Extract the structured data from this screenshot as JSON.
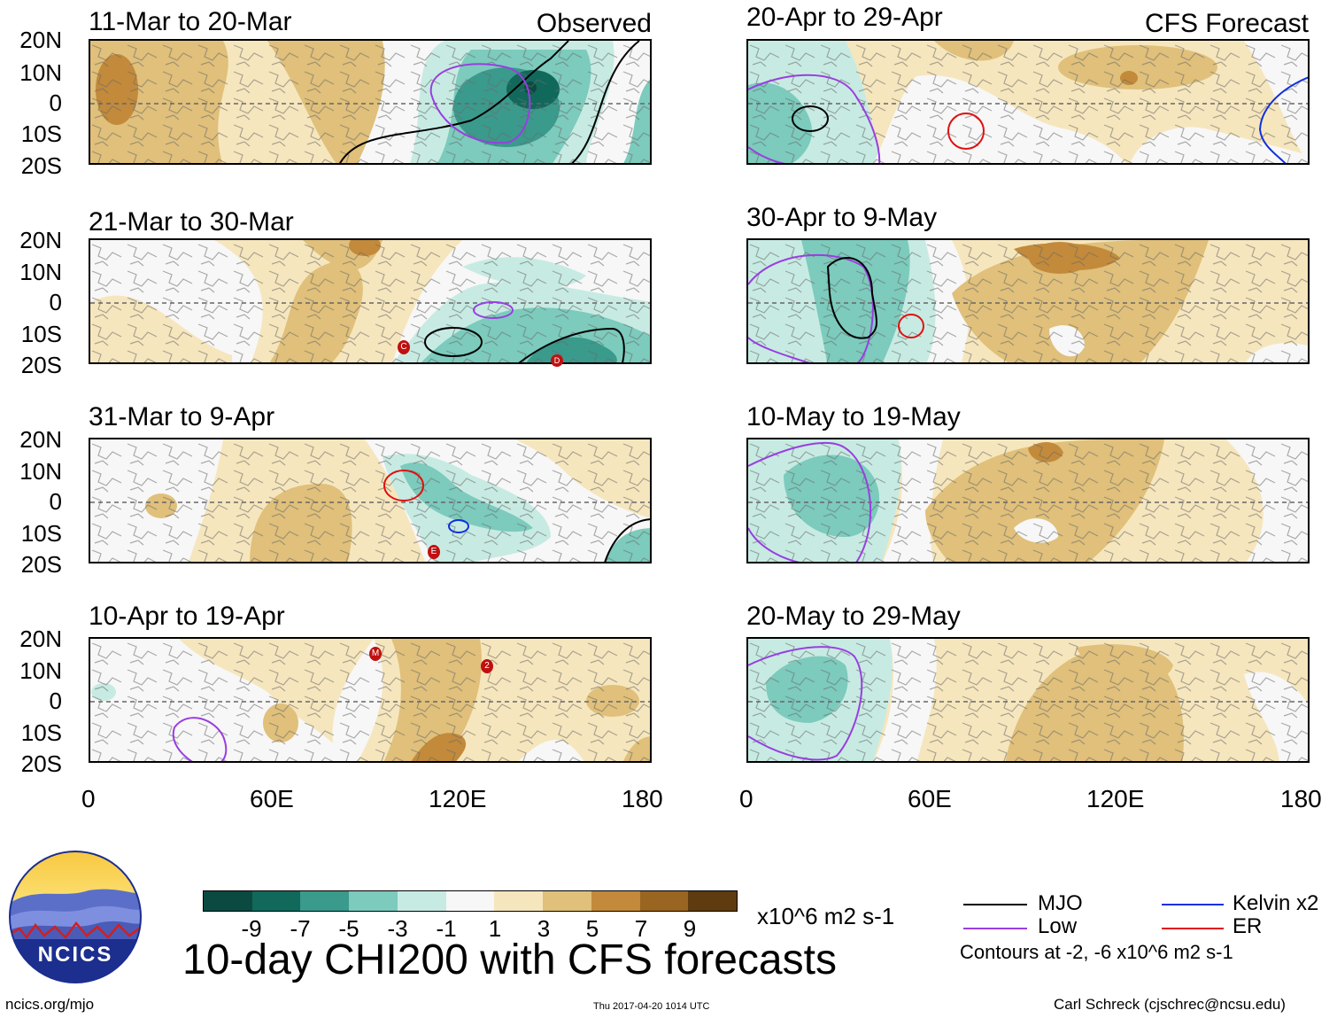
{
  "title": "10-day CHI200 with CFS forecasts",
  "left_header": "Observed",
  "right_header": "CFS Forecast",
  "lat_labels": [
    "20N",
    "10N",
    "0",
    "10S",
    "20S"
  ],
  "lon_labels": [
    "0",
    "60E",
    "120E",
    "180"
  ],
  "panels": [
    {
      "period": "11-Mar to 20-Mar"
    },
    {
      "period": "21-Mar to 30-Mar"
    },
    {
      "period": "31-Mar to 9-Apr"
    },
    {
      "period": "10-Apr to 19-Apr"
    },
    {
      "period": "20-Apr to 29-Apr"
    },
    {
      "period": "30-Apr to 9-May"
    },
    {
      "period": "10-May to 19-May"
    },
    {
      "period": "20-May to 29-May"
    }
  ],
  "colorbar": {
    "ticks": [
      "-9",
      "-7",
      "-5",
      "-3",
      "-1",
      "1",
      "3",
      "5",
      "7",
      "9"
    ],
    "colors": [
      "#0b4a40",
      "#11695c",
      "#3a9a8c",
      "#7ccbbd",
      "#c7ebe3",
      "#f7f7f7",
      "#f6e6bd",
      "#e0c07a",
      "#c28a3a",
      "#9a6520",
      "#5e3c10"
    ],
    "units": "x10^6 m2 s-1"
  },
  "legend": {
    "items": [
      {
        "label": "MJO",
        "color": "#000000"
      },
      {
        "label": "Kelvin x2",
        "color": "#1030e0"
      },
      {
        "label": "Low",
        "color": "#9a3ee0"
      },
      {
        "label": "ER",
        "color": "#e01010"
      }
    ],
    "note": "Contours at -2, -6 x10^6 m2 s-1"
  },
  "logo": {
    "text": "NCICS"
  },
  "footer": {
    "url": "ncics.org/mjo",
    "timestamp": "Thu 2017-04-20 1014 UTC",
    "author": "Carl Schreck (cjschrec@ncsu.edu)"
  },
  "cyclones": [
    "C",
    "D",
    "E",
    "M",
    "2"
  ]
}
